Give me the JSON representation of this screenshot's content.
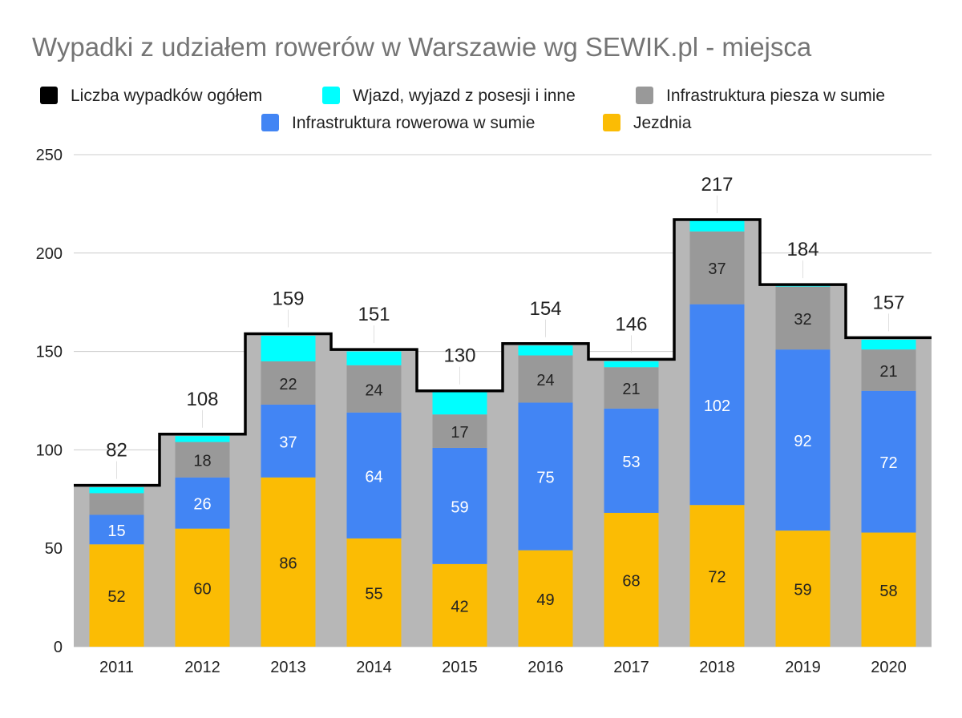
{
  "chart_data": {
    "type": "bar",
    "stacked": true,
    "title": "Wypadki z udziałem rowerów w Warszawie wg SEWIK.pl - miejsca",
    "xlabel": "",
    "ylabel": "",
    "ylim": [
      0,
      250
    ],
    "yticks": [
      0,
      50,
      100,
      150,
      200,
      250
    ],
    "grid": true,
    "legend_position": "top",
    "categories": [
      "2011",
      "2012",
      "2013",
      "2014",
      "2015",
      "2016",
      "2017",
      "2018",
      "2019",
      "2020"
    ],
    "total": {
      "name": "Liczba wypadków ogółem",
      "color": "#000000",
      "style": "stepped-line",
      "values": [
        82,
        108,
        159,
        151,
        130,
        154,
        146,
        217,
        184,
        157
      ]
    },
    "series": [
      {
        "name": "Jezdnia",
        "color": "#fbbc04",
        "label_color": "#222222",
        "values": [
          52,
          60,
          86,
          55,
          42,
          49,
          68,
          72,
          59,
          58
        ]
      },
      {
        "name": "Infrastruktura rowerowa w sumie",
        "color": "#4285f4",
        "label_color": "#ffffff",
        "values": [
          15,
          26,
          37,
          64,
          59,
          75,
          53,
          102,
          92,
          72
        ]
      },
      {
        "name": "Infrastruktura piesza w sumie",
        "color": "#999999",
        "label_color": "#222222",
        "values": [
          11,
          18,
          22,
          24,
          17,
          24,
          21,
          37,
          32,
          21
        ]
      },
      {
        "name": "Wjazd, wyjazd z posesji i inne",
        "color": "#00ffff",
        "label_color": "#222222",
        "values": [
          3,
          3,
          13,
          7,
          12,
          5,
          3,
          6,
          1,
          5
        ]
      }
    ],
    "shown_segment_labels": {
      "Jezdnia": [
        52,
        60,
        86,
        55,
        42,
        49,
        68,
        72,
        59,
        58
      ],
      "Infrastruktura rowerowa w sumie": [
        15,
        26,
        37,
        64,
        59,
        75,
        53,
        102,
        92,
        72
      ],
      "Infrastruktura piesza w sumie": [
        null,
        18,
        22,
        24,
        17,
        24,
        21,
        37,
        32,
        21
      ],
      "Wjazd, wyjazd z posesji i inne": [
        null,
        null,
        null,
        null,
        null,
        null,
        null,
        null,
        null,
        null
      ]
    },
    "legend_order": [
      "Liczba wypadków ogółem",
      "Wjazd, wyjazd z posesji i inne",
      "Infrastruktura piesza w sumie",
      "Infrastruktura rowerowa w sumie",
      "Jezdnia"
    ],
    "area_fill_color": "#b7b7b7",
    "background_color": "#ffffff",
    "gridline_color": "#cccccc"
  }
}
